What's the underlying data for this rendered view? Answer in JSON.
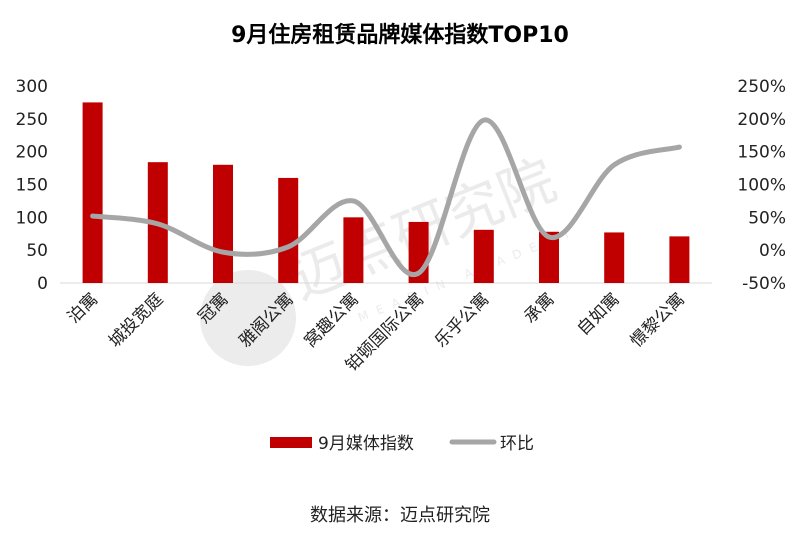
{
  "chart_data": {
    "type": "bar+line",
    "title": "9月住房租赁品牌媒体指数TOP10",
    "categories": [
      "泊寓",
      "城投宽庭",
      "冠寓",
      "雅阁公寓",
      "窝趣公寓",
      "铂顿国际公寓",
      "乐乎公寓",
      "承寓",
      "自如寓",
      "憬黎公寓"
    ],
    "series": [
      {
        "name": "9月媒体指数",
        "type": "bar",
        "axis": "left",
        "color": "#c00000",
        "values": [
          275,
          184,
          180,
          160,
          100,
          93,
          81,
          78,
          77,
          71
        ]
      },
      {
        "name": "环比",
        "type": "line",
        "axis": "right",
        "color": "#a6a6a6",
        "values": [
          0.52,
          0.4,
          -0.03,
          0.05,
          0.75,
          -0.35,
          1.98,
          0.2,
          1.3,
          1.57
        ]
      }
    ],
    "left_axis": {
      "ylim": [
        0,
        300
      ],
      "ticks": [
        "0",
        "50",
        "100",
        "150",
        "200",
        "250",
        "300"
      ]
    },
    "right_axis": {
      "ylim": [
        -0.5,
        2.5
      ],
      "ticks": [
        "-50%",
        "0%",
        "50%",
        "100%",
        "150%",
        "200%",
        "250%"
      ]
    },
    "legend_position": "bottom",
    "grid": false
  },
  "source": "数据来源：迈点研究院",
  "watermark": {
    "cn": "迈点研究院",
    "en": "MEADIN ACADEMY"
  }
}
